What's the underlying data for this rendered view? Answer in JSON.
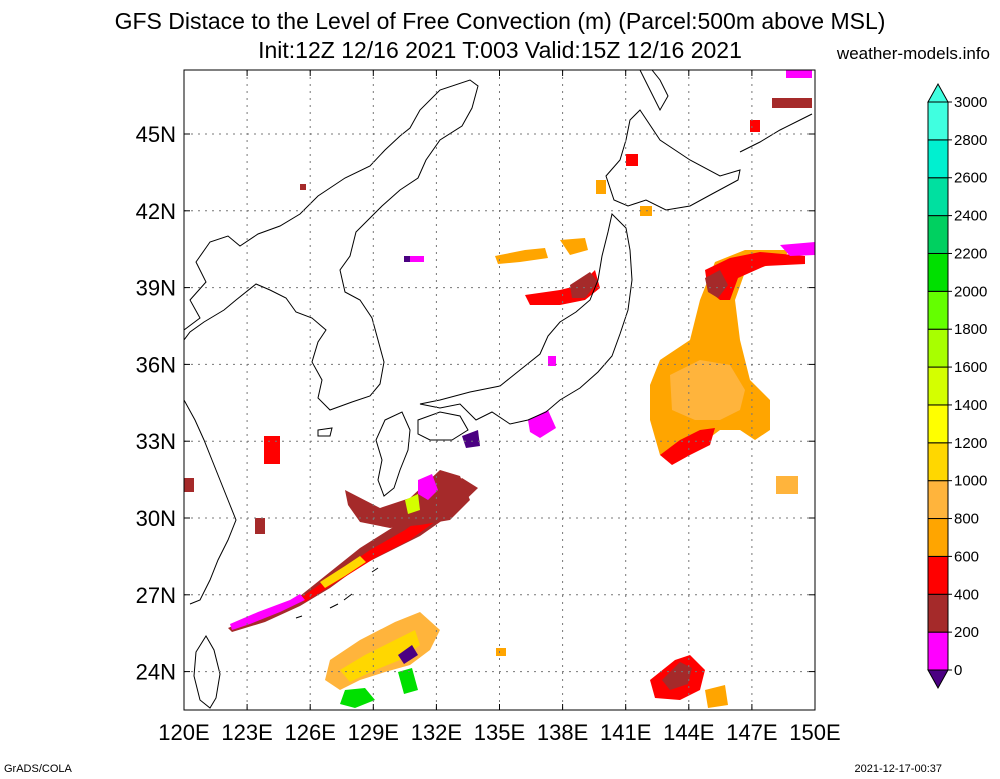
{
  "title": "GFS Distace to the Level of Free Convection (m) (Parcel:500m above MSL)",
  "subtitle": "Init:12Z 12/16 2021 T:003 Valid:15Z 12/16 2021",
  "site": "weather-models.info",
  "footer_left": "GrADS/COLA",
  "footer_right": "2021-12-17-00:37",
  "axes": {
    "lon_labels": [
      "120E",
      "123E",
      "126E",
      "129E",
      "132E",
      "135E",
      "138E",
      "141E",
      "144E",
      "147E",
      "150E"
    ],
    "lon_values": [
      120,
      123,
      126,
      129,
      132,
      135,
      138,
      141,
      144,
      147,
      150
    ],
    "lat_labels": [
      "24N",
      "27N",
      "30N",
      "33N",
      "36N",
      "39N",
      "42N",
      "45N"
    ],
    "lat_values": [
      24,
      27,
      30,
      33,
      36,
      39,
      42,
      45
    ],
    "lon_range": [
      120,
      150
    ],
    "lat_range": [
      22.5,
      47.5
    ]
  },
  "colorbar": {
    "labels": [
      "0",
      "200",
      "400",
      "600",
      "800",
      "1000",
      "1200",
      "1400",
      "1600",
      "1800",
      "2000",
      "2200",
      "2400",
      "2600",
      "2800",
      "3000"
    ],
    "colors": [
      "#4b0082",
      "#ff00ff",
      "#a52a2a",
      "#ff0000",
      "#ffa500",
      "#ffb43c",
      "#ffd700",
      "#ffff00",
      "#d4ff00",
      "#a8ff00",
      "#64ff00",
      "#00e000",
      "#00d060",
      "#00e0a0",
      "#00f0d0",
      "#40ffe0"
    ]
  },
  "colors": {
    "c0": "#4b0082",
    "c200": "#ff00ff",
    "c400": "#a52a2a",
    "c600": "#ff0000",
    "c800": "#ffa500",
    "c1000": "#ffb43c",
    "c1200": "#ffd700",
    "c1600": "#d4ff00",
    "c2200": "#00e000"
  }
}
